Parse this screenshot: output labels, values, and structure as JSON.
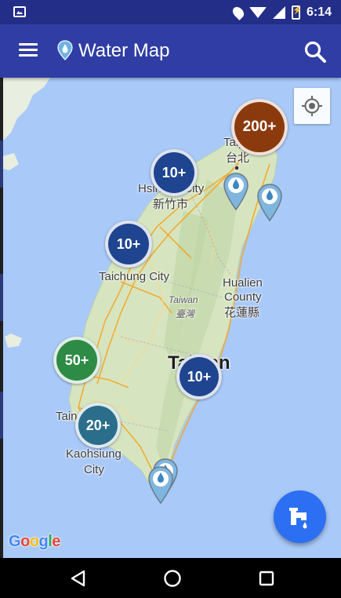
{
  "status_bar": {
    "time": "6:14",
    "icons": [
      "gallery-notification-icon",
      "location-icon",
      "wifi-icon",
      "signal-icon",
      "battery-charging-icon"
    ]
  },
  "app_bar": {
    "title": "Water Map",
    "logo_icon": "water-drop-pin-icon",
    "menu_icon": "hamburger-menu-icon",
    "search_icon": "search-icon",
    "color": "#2f3da4"
  },
  "map": {
    "labels": {
      "taipei_en": "Taipei",
      "taipei_zh": "台北",
      "hsinchu_en": "Hsinchu City",
      "hsinchu_zh": "新竹市",
      "taichung": "Taichung City",
      "taiwan_en": "Taiwan",
      "taiwan_zh": "臺灣",
      "hualien_en_1": "Hualien",
      "hualien_en_2": "County",
      "hualien_zh": "花蓮縣",
      "country": "Taiwan",
      "tainan": "Tainan",
      "kaohsiung_1": "Kaohsiung",
      "kaohsiung_2": "City"
    },
    "clusters": [
      {
        "name": "cluster-taipei",
        "label": "200+",
        "color": "#8b3a0e"
      },
      {
        "name": "cluster-hsinchu",
        "label": "10+",
        "color": "#1f4590"
      },
      {
        "name": "cluster-taichung",
        "label": "10+",
        "color": "#1f4590"
      },
      {
        "name": "cluster-chiayi",
        "label": "50+",
        "color": "#2e8b45"
      },
      {
        "name": "cluster-central",
        "label": "10+",
        "color": "#1f4590"
      },
      {
        "name": "cluster-kaohsiung",
        "label": "20+",
        "color": "#2a6e8c"
      }
    ],
    "water_color": "#a9c9f8",
    "land_color": "#d8e6c4",
    "road_color": "#f5a623"
  },
  "my_location_icon": "my-location-crosshair-icon",
  "fab_icon": "water-tap-icon",
  "fab_color": "#2c6ff2",
  "attribution": "Google",
  "nav_bar": {
    "back_icon": "back-triangle-icon",
    "home_icon": "home-circle-icon",
    "recents_icon": "recents-square-icon"
  }
}
